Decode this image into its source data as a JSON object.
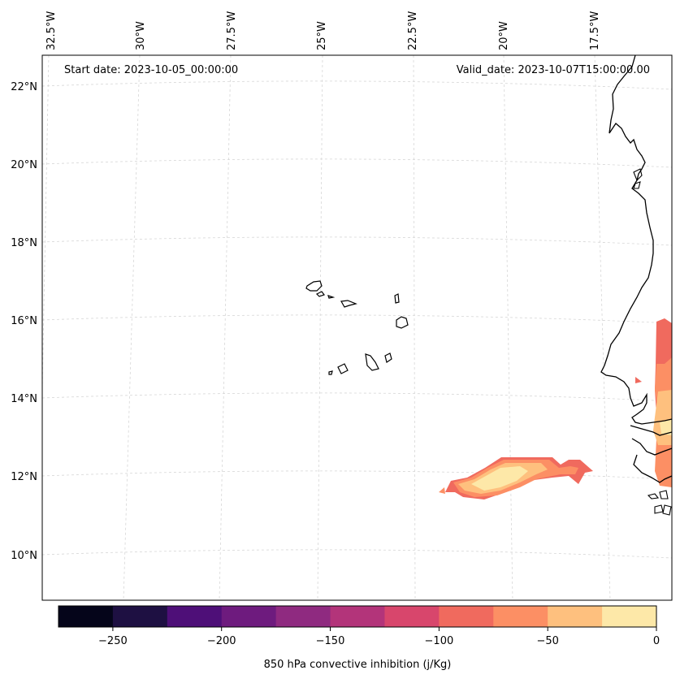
{
  "header": {
    "start_date": "Start date: 2023-10-05_00:00:00",
    "valid_date": "Valid_date: 2023-10-07T15:00:00.00"
  },
  "map": {
    "projection": "lambert-conformal",
    "lon_labels": [
      "32.5°W",
      "30°W",
      "27.5°W",
      "25°W",
      "22.5°W",
      "20°W",
      "17.5°W"
    ],
    "lat_labels": [
      "22°N",
      "20°N",
      "18°N",
      "16°N",
      "14°N",
      "12°N",
      "10°N"
    ],
    "features": [
      "cape-verde-islands",
      "west-africa-coastline",
      "convective-inhibition-field"
    ]
  },
  "colorbar": {
    "label": "850 hPa convective inhibition (j/Kg)",
    "tick_labels": [
      "−250",
      "−200",
      "−150",
      "−100",
      "−50",
      "0"
    ],
    "bins": [
      -275,
      -250,
      -225,
      -200,
      -175,
      -150,
      -125,
      -100,
      -75,
      -50,
      -25,
      0
    ],
    "colors": [
      "#05051a",
      "#1e1042",
      "#4e0f78",
      "#6e1b7e",
      "#8f2a80",
      "#b3347a",
      "#d8466c",
      "#f06a5e",
      "#fc8f64",
      "#fec07e",
      "#fde8a8"
    ]
  }
}
